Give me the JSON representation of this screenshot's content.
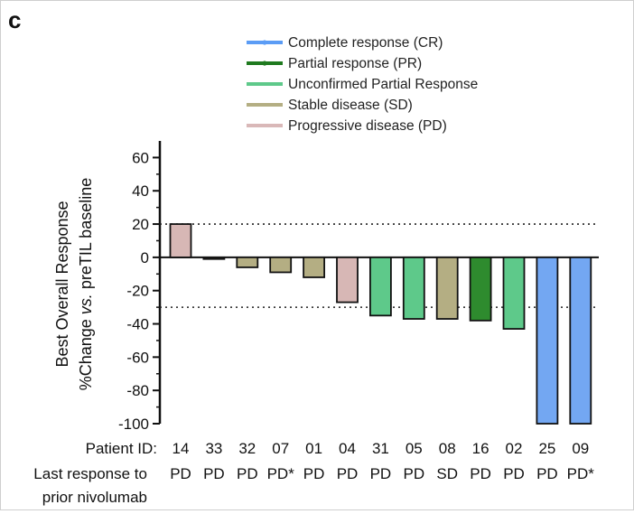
{
  "panel_label": "c",
  "chart_data": {
    "type": "bar",
    "title": "",
    "ylabel_lines": [
      "Best Overall Response",
      "%Change",
      "vs.",
      "preTIL baseline"
    ],
    "ylim": [
      -100,
      70
    ],
    "yticks": [
      60,
      40,
      20,
      0,
      -20,
      -40,
      -60,
      -80,
      -100
    ],
    "reference_lines": [
      20,
      -30
    ],
    "row_labels": {
      "patient_id": "Patient ID:",
      "last_response_line1": "Last response to",
      "last_response_line2": "prior nivolumab"
    },
    "categories": [
      "14",
      "33",
      "32",
      "07",
      "01",
      "04",
      "31",
      "05",
      "08",
      "16",
      "02",
      "25",
      "09"
    ],
    "prior_response": [
      "PD",
      "PD",
      "PD",
      "PD*",
      "PD",
      "PD",
      "PD",
      "PD",
      "SD",
      "PD",
      "PD",
      "PD",
      "PD*"
    ],
    "values": [
      20,
      -1,
      -6,
      -9,
      -12,
      -27,
      -35,
      -37,
      -37,
      -38,
      -43,
      -100,
      -100
    ],
    "bar_groups": [
      "PD",
      "PD",
      "SD",
      "SD",
      "SD",
      "PD",
      "UPR",
      "UPR",
      "SD",
      "PR",
      "UPR",
      "CR",
      "CR"
    ],
    "legend": [
      {
        "key": "CR",
        "label": "Complete response (CR)",
        "color": "#5b9cf5",
        "marker": true
      },
      {
        "key": "PR",
        "label": "Partial response (PR)",
        "color": "#1f7a1f",
        "marker": true
      },
      {
        "key": "UPR",
        "label": "Unconfirmed Partial Response",
        "color": "#5ec98a",
        "marker": false
      },
      {
        "key": "SD",
        "label": "Stable disease (SD)",
        "color": "#b4ae83",
        "marker": false
      },
      {
        "key": "PD",
        "label": "Progressive disease (PD)",
        "color": "#d9b8b8",
        "marker": false
      }
    ],
    "bar_colors": {
      "CR": "#73a7f2",
      "PR": "#2e8b2e",
      "UPR": "#5ec98a",
      "SD": "#b4ae83",
      "PD": "#d7b7b5"
    },
    "grid": false,
    "legend_position": "top-center"
  }
}
